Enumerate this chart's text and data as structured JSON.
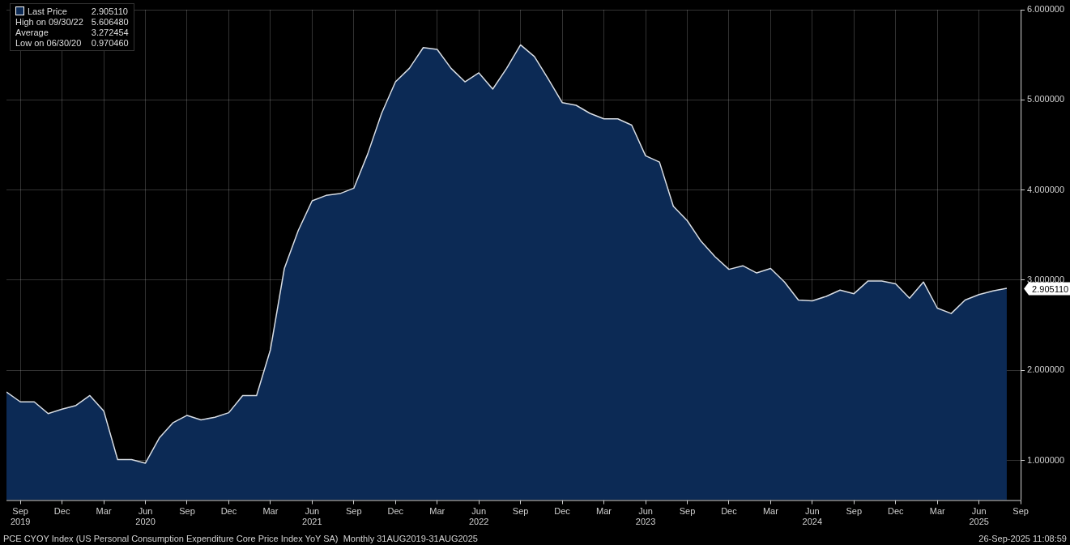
{
  "chart_data": {
    "type": "area",
    "x": [
      "2019-08",
      "2019-09",
      "2019-10",
      "2019-11",
      "2019-12",
      "2020-01",
      "2020-02",
      "2020-03",
      "2020-04",
      "2020-05",
      "2020-06",
      "2020-07",
      "2020-08",
      "2020-09",
      "2020-10",
      "2020-11",
      "2020-12",
      "2021-01",
      "2021-02",
      "2021-03",
      "2021-04",
      "2021-05",
      "2021-06",
      "2021-07",
      "2021-08",
      "2021-09",
      "2021-10",
      "2021-11",
      "2021-12",
      "2022-01",
      "2022-02",
      "2022-03",
      "2022-04",
      "2022-05",
      "2022-06",
      "2022-07",
      "2022-08",
      "2022-09",
      "2022-10",
      "2022-11",
      "2022-12",
      "2023-01",
      "2023-02",
      "2023-03",
      "2023-04",
      "2023-05",
      "2023-06",
      "2023-07",
      "2023-08",
      "2023-09",
      "2023-10",
      "2023-11",
      "2023-12",
      "2024-01",
      "2024-02",
      "2024-03",
      "2024-04",
      "2024-05",
      "2024-06",
      "2024-07",
      "2024-08",
      "2024-09",
      "2024-10",
      "2024-11",
      "2024-12",
      "2025-01",
      "2025-02",
      "2025-03",
      "2025-04",
      "2025-05",
      "2025-06",
      "2025-07",
      "2025-08"
    ],
    "series": [
      {
        "name": "Last Price",
        "color": "#0c2a55",
        "values": [
          1.76,
          1.65,
          1.65,
          1.52,
          1.57,
          1.61,
          1.72,
          1.55,
          1.01,
          1.01,
          0.97,
          1.25,
          1.42,
          1.5,
          1.45,
          1.48,
          1.53,
          1.72,
          1.72,
          2.23,
          3.13,
          3.55,
          3.88,
          3.94,
          3.96,
          4.02,
          4.4,
          4.85,
          5.2,
          5.35,
          5.58,
          5.56,
          5.35,
          5.2,
          5.3,
          5.12,
          5.35,
          5.61,
          5.48,
          5.23,
          4.97,
          4.94,
          4.85,
          4.79,
          4.79,
          4.72,
          4.38,
          4.31,
          3.82,
          3.66,
          3.43,
          3.26,
          3.12,
          3.16,
          3.08,
          3.13,
          2.98,
          2.78,
          2.77,
          2.82,
          2.89,
          2.85,
          2.99,
          2.99,
          2.96,
          2.8,
          2.98,
          2.69,
          2.63,
          2.78,
          2.84,
          2.88,
          2.91
        ]
      }
    ],
    "xlim": [
      "2019-08",
      "2025-09"
    ],
    "xticks": [
      {
        "value": "2019-09",
        "label": "Sep\n2019"
      },
      {
        "value": "2019-12",
        "label": "Dec"
      },
      {
        "value": "2020-03",
        "label": "Mar"
      },
      {
        "value": "2020-06",
        "label": "Jun\n2020"
      },
      {
        "value": "2020-09",
        "label": "Sep"
      },
      {
        "value": "2020-12",
        "label": "Dec"
      },
      {
        "value": "2021-03",
        "label": "Mar"
      },
      {
        "value": "2021-06",
        "label": "Jun\n2021"
      },
      {
        "value": "2021-09",
        "label": "Sep"
      },
      {
        "value": "2021-12",
        "label": "Dec"
      },
      {
        "value": "2022-03",
        "label": "Mar"
      },
      {
        "value": "2022-06",
        "label": "Jun\n2022"
      },
      {
        "value": "2022-09",
        "label": "Sep"
      },
      {
        "value": "2022-12",
        "label": "Dec"
      },
      {
        "value": "2023-03",
        "label": "Mar"
      },
      {
        "value": "2023-06",
        "label": "Jun\n2023"
      },
      {
        "value": "2023-09",
        "label": "Sep"
      },
      {
        "value": "2023-12",
        "label": "Dec"
      },
      {
        "value": "2024-03",
        "label": "Mar"
      },
      {
        "value": "2024-06",
        "label": "Jun\n2024"
      },
      {
        "value": "2024-09",
        "label": "Sep"
      },
      {
        "value": "2024-12",
        "label": "Dec"
      },
      {
        "value": "2025-03",
        "label": "Mar"
      },
      {
        "value": "2025-06",
        "label": "Jun\n2025"
      },
      {
        "value": "2025-09",
        "label": "Sep"
      }
    ],
    "ylim": [
      0.56,
      6.0
    ],
    "yticks": [
      {
        "value": 1,
        "label": "1.000000"
      },
      {
        "value": 2,
        "label": "2.000000"
      },
      {
        "value": 3,
        "label": "3.000000"
      },
      {
        "value": 4,
        "label": "4.000000"
      },
      {
        "value": 5,
        "label": "5.000000"
      },
      {
        "value": 6,
        "label": "6.000000"
      }
    ],
    "grid": true,
    "legend": "top left",
    "annotations": [
      "High on 09/30/22 5.606480",
      "Average 3.272454",
      "Low on 06/30/20 0.970460",
      "PCE CYOY Index (US Personal Consumption Expenditure Core Price Index YoY SA)  Monthly 31AUG2019-31AUG2025",
      "26-Sep-2025 11:08:59",
      {
        "text": "2.905110",
        "x": "2025-08",
        "y": 2.90511
      }
    ]
  }
}
